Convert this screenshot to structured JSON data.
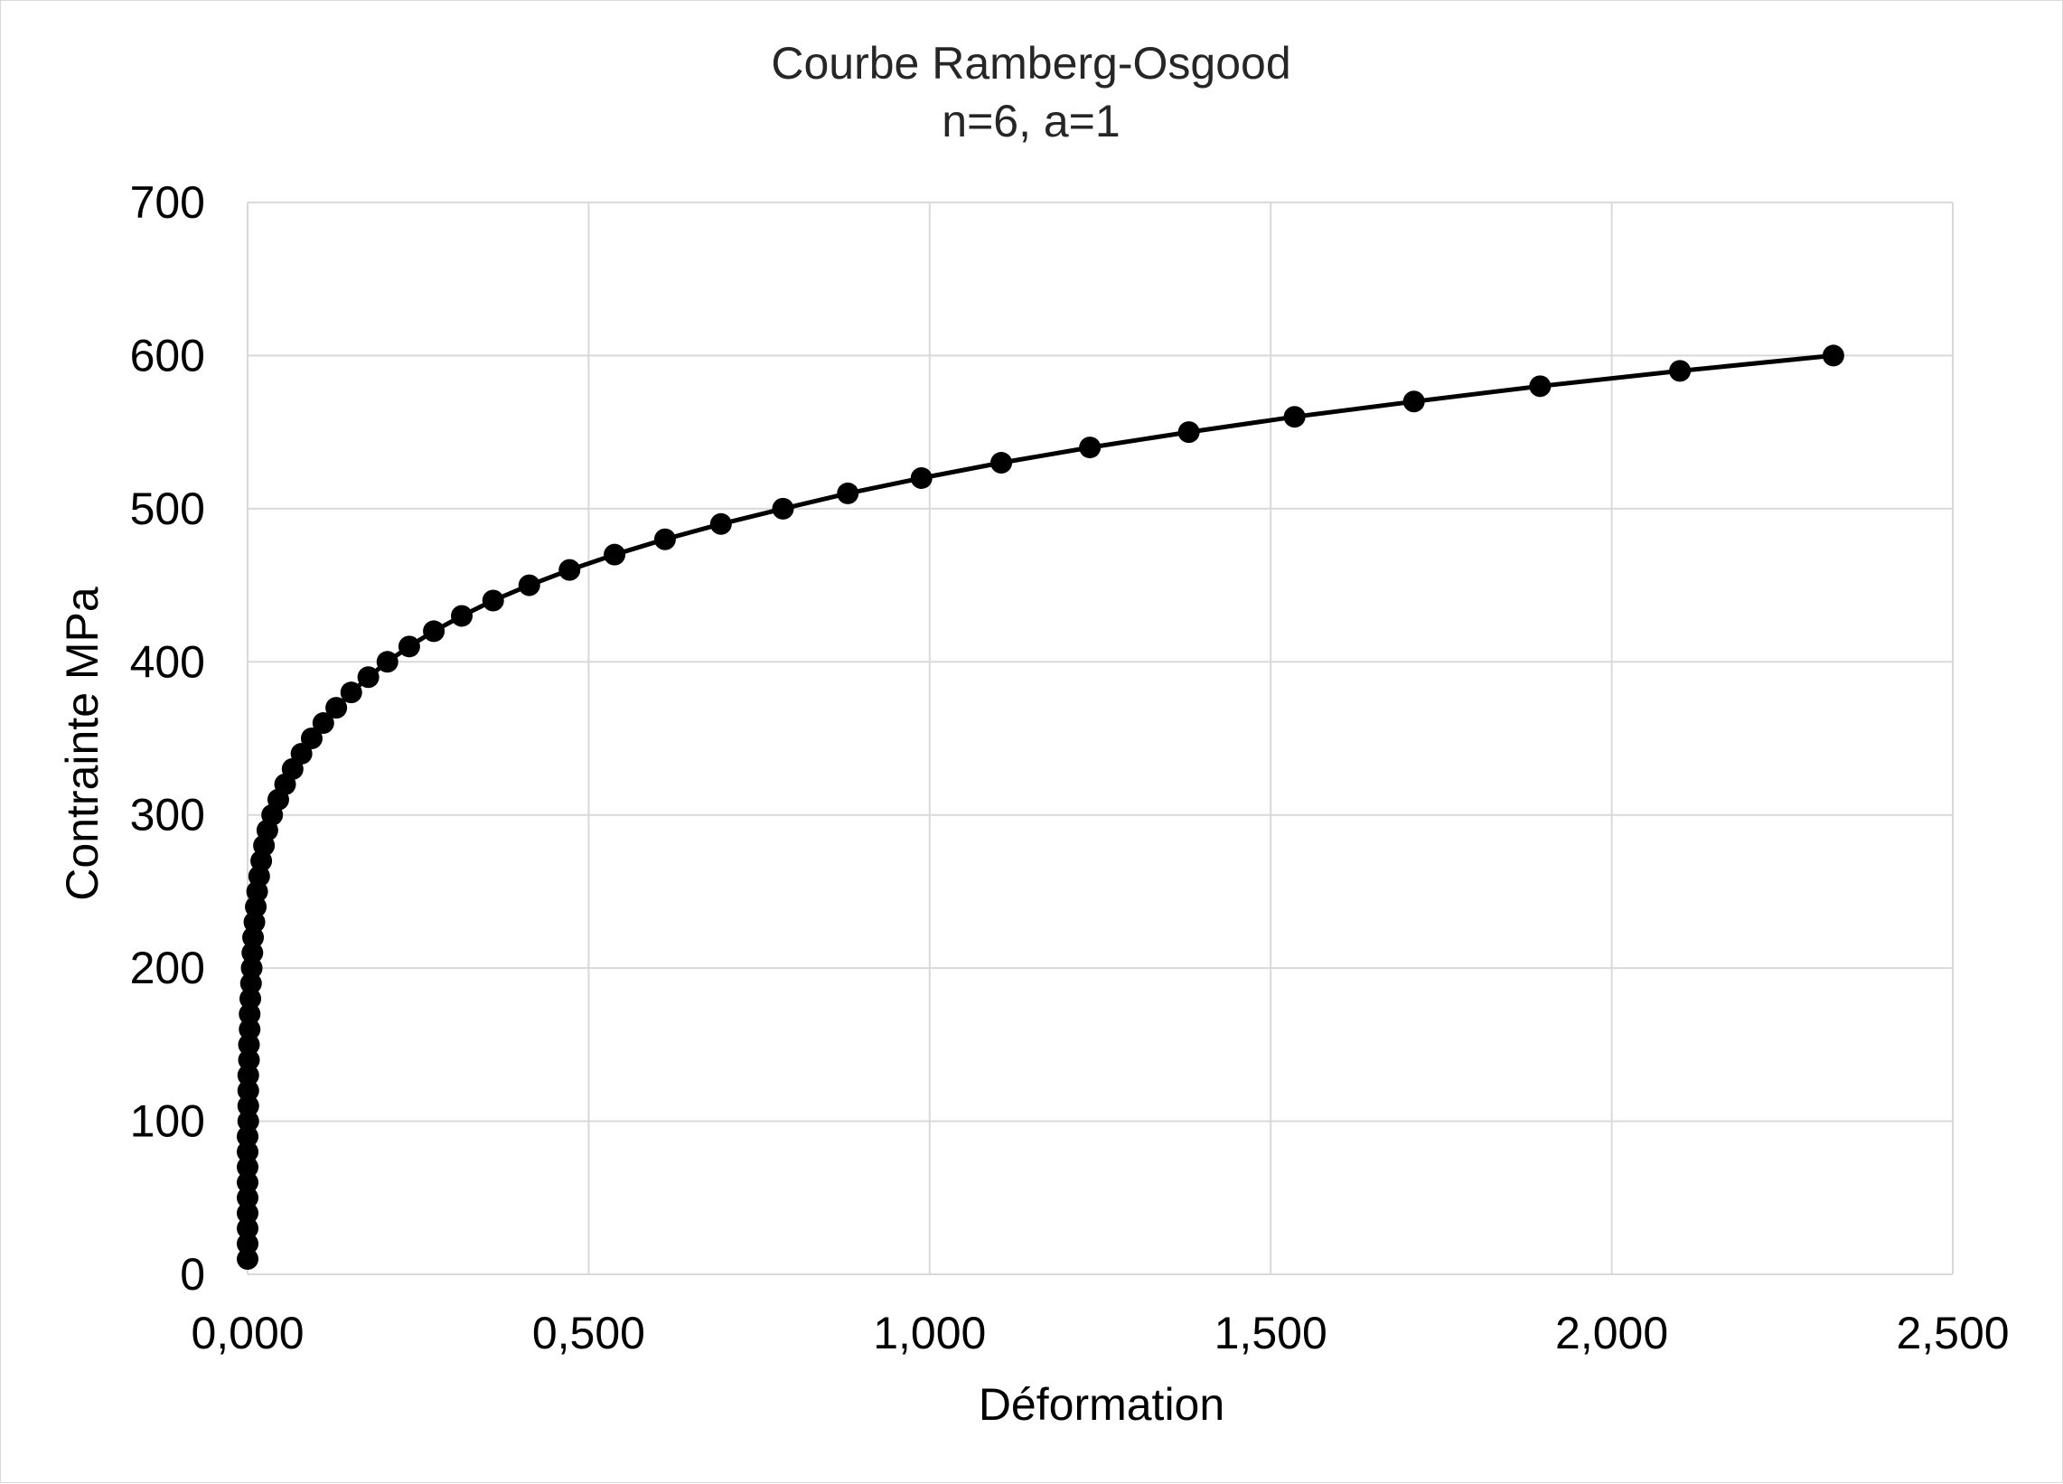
{
  "chart_data": {
    "type": "scatter",
    "title": "Courbe Ramberg-Osgood",
    "subtitle": "n=6, a=1",
    "xlabel": "Déformation",
    "ylabel": "Contrainte MPa",
    "xlim": [
      0,
      2.5
    ],
    "ylim": [
      0,
      700
    ],
    "x_tick_labels": [
      "0,000",
      "0,500",
      "1,000",
      "1,500",
      "2,000",
      "2,500"
    ],
    "y_tick_labels": [
      "0",
      "100",
      "200",
      "300",
      "400",
      "500",
      "600",
      "700"
    ],
    "x_ticks": [
      0,
      0.5,
      1.0,
      1.5,
      2.0,
      2.5
    ],
    "y_ticks": [
      0,
      100,
      200,
      300,
      400,
      500,
      600,
      700
    ],
    "grid": true,
    "legend": "none",
    "series": [
      {
        "color": "#000000",
        "marker": "circle",
        "line": true,
        "points": [
          [
            0.0,
            10
          ],
          [
            0.0,
            20
          ],
          [
            0.0,
            30
          ],
          [
            0.0,
            40
          ],
          [
            0.0,
            50
          ],
          [
            0.0,
            60
          ],
          [
            0.0,
            70
          ],
          [
            0.0,
            80
          ],
          [
            0.0,
            90
          ],
          [
            0.001,
            100
          ],
          [
            0.001,
            110
          ],
          [
            0.001,
            120
          ],
          [
            0.001,
            130
          ],
          [
            0.002,
            140
          ],
          [
            0.002,
            150
          ],
          [
            0.003,
            160
          ],
          [
            0.003,
            170
          ],
          [
            0.004,
            180
          ],
          [
            0.005,
            190
          ],
          [
            0.006,
            200
          ],
          [
            0.007,
            210
          ],
          [
            0.008,
            220
          ],
          [
            0.01,
            230
          ],
          [
            0.012,
            240
          ],
          [
            0.014,
            250
          ],
          [
            0.017,
            260
          ],
          [
            0.02,
            270
          ],
          [
            0.024,
            280
          ],
          [
            0.029,
            290
          ],
          [
            0.036,
            300
          ],
          [
            0.045,
            310
          ],
          [
            0.055,
            320
          ],
          [
            0.066,
            330
          ],
          [
            0.079,
            340
          ],
          [
            0.094,
            350
          ],
          [
            0.111,
            360
          ],
          [
            0.13,
            370
          ],
          [
            0.152,
            380
          ],
          [
            0.177,
            390
          ],
          [
            0.205,
            400
          ],
          [
            0.237,
            410
          ],
          [
            0.273,
            420
          ],
          [
            0.314,
            430
          ],
          [
            0.36,
            440
          ],
          [
            0.413,
            450
          ],
          [
            0.472,
            460
          ],
          [
            0.538,
            470
          ],
          [
            0.612,
            480
          ],
          [
            0.694,
            490
          ],
          [
            0.785,
            500
          ],
          [
            0.88,
            510
          ],
          [
            0.988,
            520
          ],
          [
            1.105,
            530
          ],
          [
            1.235,
            540
          ],
          [
            1.38,
            550
          ],
          [
            1.535,
            560
          ],
          [
            1.71,
            570
          ],
          [
            1.895,
            580
          ],
          [
            2.1,
            590
          ],
          [
            2.325,
            600
          ]
        ]
      }
    ]
  }
}
